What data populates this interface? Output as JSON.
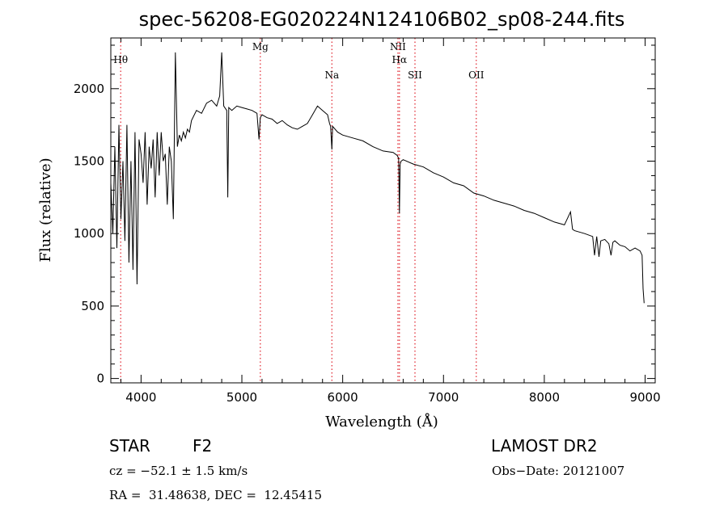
{
  "chart_data": {
    "type": "line",
    "title": "spec-56208-EG020224N124106B02_sp08-244.fits",
    "xlabel": "Wavelength (Å)",
    "ylabel": "Flux (relative)",
    "xlim": [
      3700,
      9100
    ],
    "ylim": [
      -30,
      2350
    ],
    "xticks": [
      4000,
      5000,
      6000,
      7000,
      8000,
      9000
    ],
    "yticks": [
      0,
      500,
      1000,
      1500,
      2000
    ],
    "grid": false,
    "series": [
      {
        "x": [
          3700,
          3720,
          3740,
          3760,
          3780,
          3800,
          3820,
          3840,
          3860,
          3880,
          3900,
          3920,
          3940,
          3960,
          3980,
          4000,
          4020,
          4040,
          4060,
          4080,
          4100,
          4120,
          4140,
          4160,
          4180,
          4200,
          4220,
          4240,
          4260,
          4280,
          4300,
          4320,
          4340,
          4360,
          4380,
          4400,
          4420,
          4440,
          4460,
          4480,
          4500,
          4550,
          4600,
          4650,
          4700,
          4750,
          4780,
          4800,
          4820,
          4850,
          4860,
          4870,
          4900,
          4950,
          5000,
          5050,
          5100,
          5150,
          5170,
          5183,
          5200,
          5250,
          5300,
          5350,
          5400,
          5450,
          5500,
          5550,
          5600,
          5650,
          5700,
          5750,
          5800,
          5850,
          5870,
          5880,
          5893,
          5900,
          5950,
          6000,
          6100,
          6200,
          6300,
          6400,
          6500,
          6540,
          6555,
          6563,
          6570,
          6580,
          6600,
          6700,
          6800,
          6900,
          7000,
          7100,
          7200,
          7300,
          7400,
          7500,
          7600,
          7700,
          7800,
          7900,
          8000,
          8100,
          8200,
          8260,
          8280,
          8300,
          8400,
          8480,
          8498,
          8520,
          8542,
          8560,
          8600,
          8640,
          8662,
          8680,
          8700,
          8750,
          8800,
          8850,
          8900,
          8950,
          8970,
          8980,
          8990
        ],
        "y": [
          1350,
          1000,
          1600,
          900,
          1750,
          1100,
          1500,
          950,
          1750,
          800,
          1500,
          750,
          1700,
          650,
          1650,
          1550,
          1350,
          1700,
          1200,
          1600,
          1450,
          1650,
          1250,
          1700,
          1400,
          1700,
          1500,
          1550,
          1200,
          1600,
          1500,
          1100,
          2250,
          1600,
          1680,
          1640,
          1700,
          1660,
          1720,
          1700,
          1780,
          1850,
          1830,
          1900,
          1920,
          1880,
          1950,
          2250,
          1880,
          1850,
          1250,
          1870,
          1850,
          1880,
          1870,
          1860,
          1850,
          1830,
          1650,
          1800,
          1820,
          1800,
          1790,
          1760,
          1780,
          1750,
          1730,
          1720,
          1740,
          1760,
          1820,
          1880,
          1850,
          1820,
          1760,
          1740,
          1580,
          1740,
          1700,
          1680,
          1660,
          1640,
          1600,
          1570,
          1560,
          1540,
          1520,
          1140,
          1480,
          1500,
          1510,
          1480,
          1460,
          1420,
          1390,
          1350,
          1330,
          1280,
          1260,
          1230,
          1210,
          1190,
          1160,
          1140,
          1110,
          1080,
          1060,
          1150,
          1030,
          1020,
          1000,
          980,
          850,
          980,
          840,
          950,
          960,
          930,
          850,
          940,
          950,
          920,
          910,
          880,
          900,
          880,
          850,
          620,
          520
        ]
      }
    ],
    "lines": [
      {
        "label": "Hθ",
        "x": 3798,
        "row": 1
      },
      {
        "label": "Mg",
        "x": 5183,
        "row": 0
      },
      {
        "label": "Na",
        "x": 5893,
        "row": 2
      },
      {
        "label": "NII",
        "x": 6548,
        "row": 0
      },
      {
        "label": "Hα",
        "x": 6563,
        "row": 1
      },
      {
        "label": "SII",
        "x": 6717,
        "row": 2
      },
      {
        "label": "OII",
        "x": 7325,
        "row": 2
      }
    ],
    "line_color": "#e0202a"
  },
  "info": {
    "class": "STAR",
    "subclass": "F2",
    "survey": "LAMOST DR2",
    "cz": "cz = −52.1 ± 1.5 km/s",
    "obsdate": "Obs−Date: 20121007",
    "radec": "RA =  31.48638, DEC =  12.45415"
  }
}
